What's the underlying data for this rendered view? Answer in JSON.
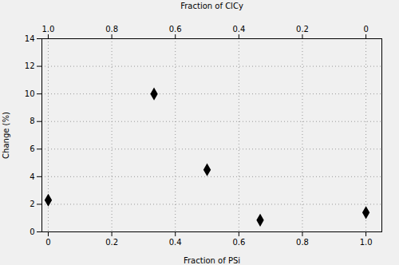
{
  "chart_data": {
    "type": "scatter",
    "xlabel": "Fraction of PSi",
    "ylabel": "Change (%)",
    "x2label": "Fraction of ClCy",
    "x": [
      0.0,
      0.333,
      0.5,
      0.667,
      1.0
    ],
    "values": [
      2.3,
      10.0,
      4.5,
      0.85,
      1.4
    ],
    "color": "black",
    "marker": "diamond",
    "xlim": [
      -0.02,
      1.05
    ],
    "ylim": [
      0,
      14
    ],
    "xticks": [
      0,
      0.2,
      0.4,
      0.6,
      0.8,
      {
        "value": 1,
        "label": "1.0"
      }
    ],
    "yticks": [
      0,
      2,
      4,
      6,
      8,
      10,
      12,
      14
    ],
    "x2lim": [
      1.02,
      -0.05
    ],
    "x2ticks": [
      {
        "value": 1,
        "label": "1.0"
      },
      0.8,
      0.6,
      0.4,
      0.2,
      0
    ],
    "grid": true
  }
}
